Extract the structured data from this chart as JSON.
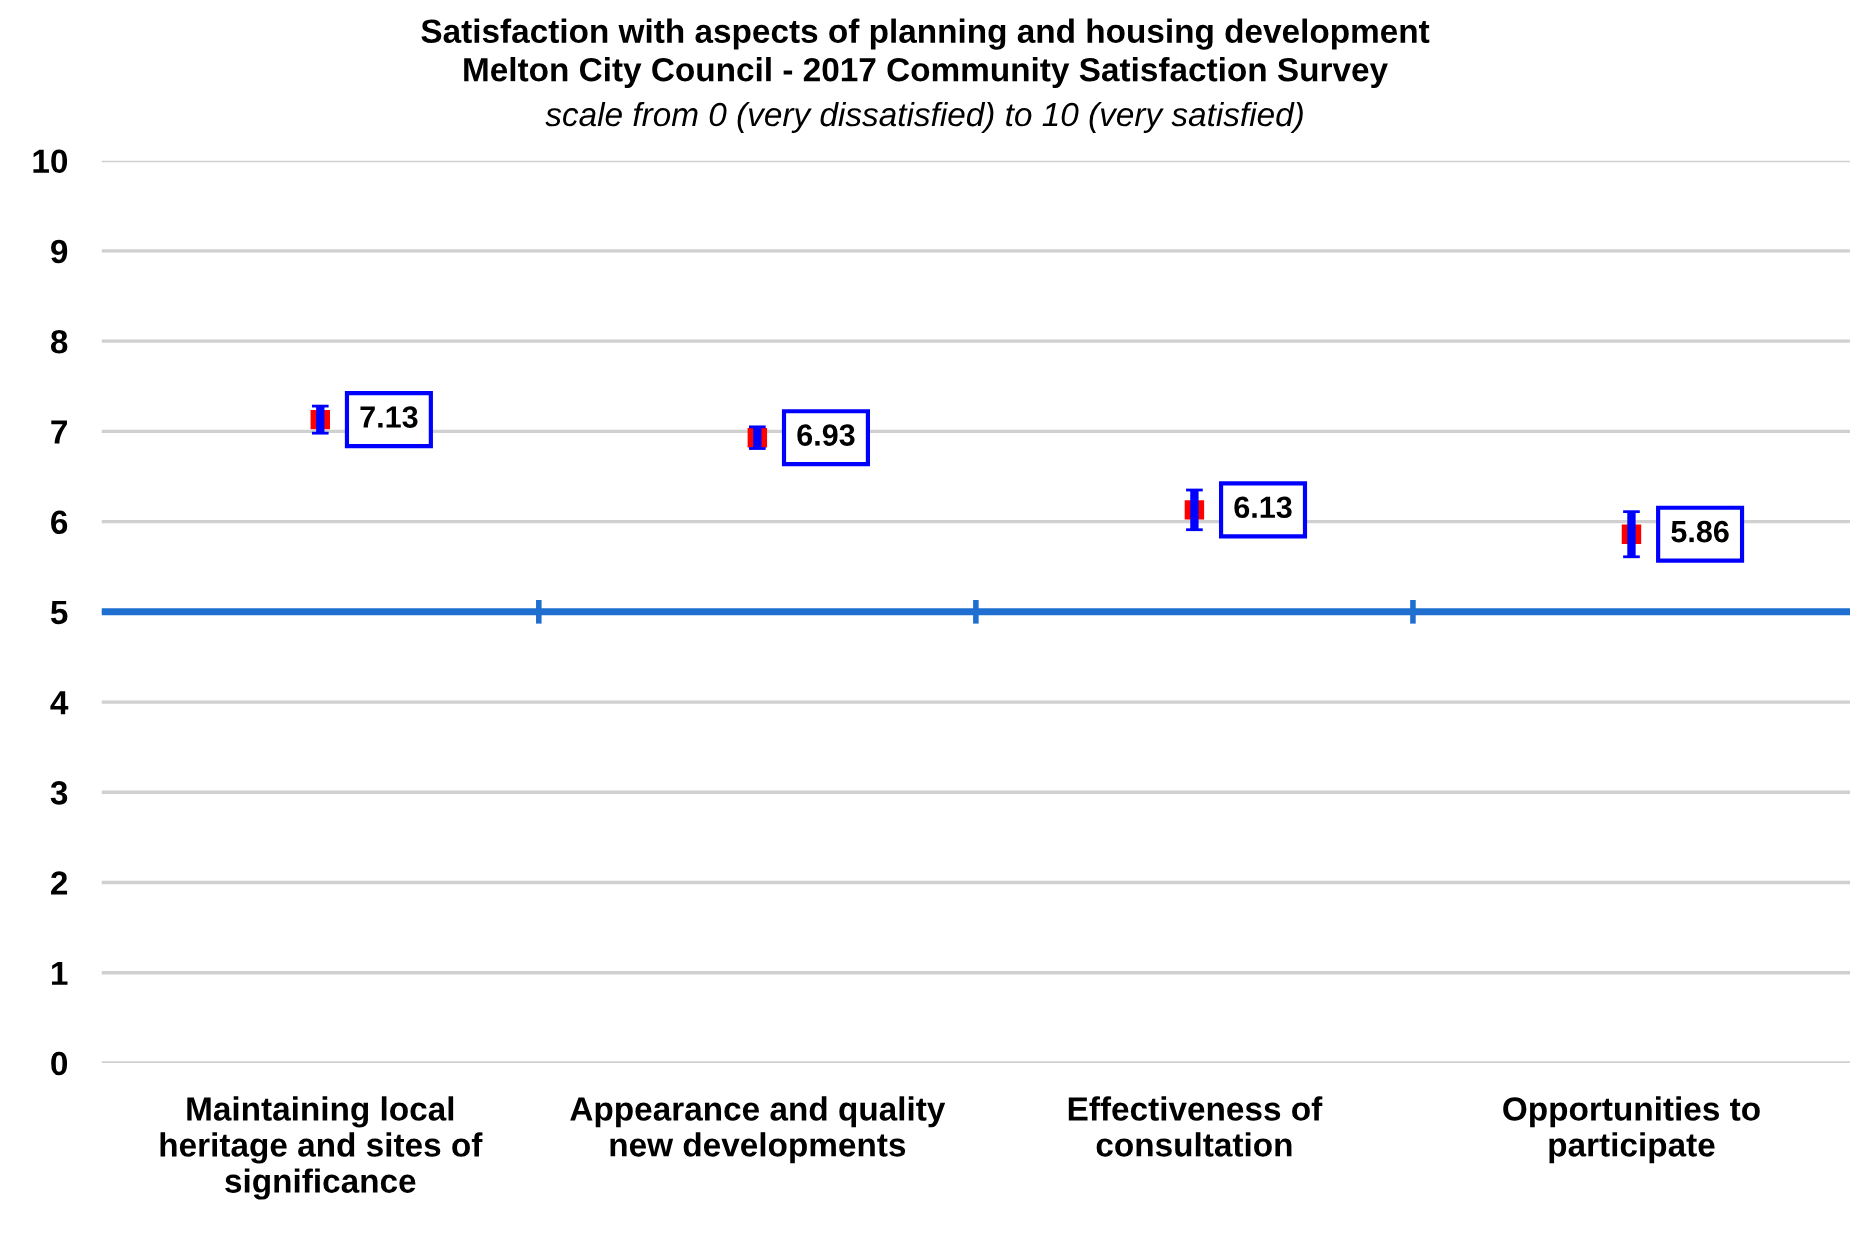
{
  "chart_data": {
    "type": "scatter",
    "title": "Satisfaction with aspects of planning and housing development\nMelton City Council - 2017 Community Satisfaction Survey",
    "subtitle": "scale from 0 (very dissatisfied) to 10 (very satisfied)",
    "categories": [
      "Maintaining local\nheritage and sites of\nsignificance",
      "Appearance and quality\nnew developments",
      "Effectiveness of\nconsultation",
      "Opportunities to\nparticipate"
    ],
    "values": [
      7.13,
      6.93,
      6.13,
      5.86
    ],
    "errors": [
      0.15,
      0.12,
      0.22,
      0.25
    ],
    "color": "#ff0000",
    "marker": "square",
    "data_labels": true,
    "ylim": [
      0,
      10
    ],
    "yticks": [
      0,
      1,
      2,
      3,
      4,
      5,
      6,
      7,
      8,
      9,
      10
    ],
    "grid": "y",
    "ref_lines": [
      {
        "axis": "y",
        "value": 5,
        "color": "#1f6fd1"
      }
    ]
  }
}
